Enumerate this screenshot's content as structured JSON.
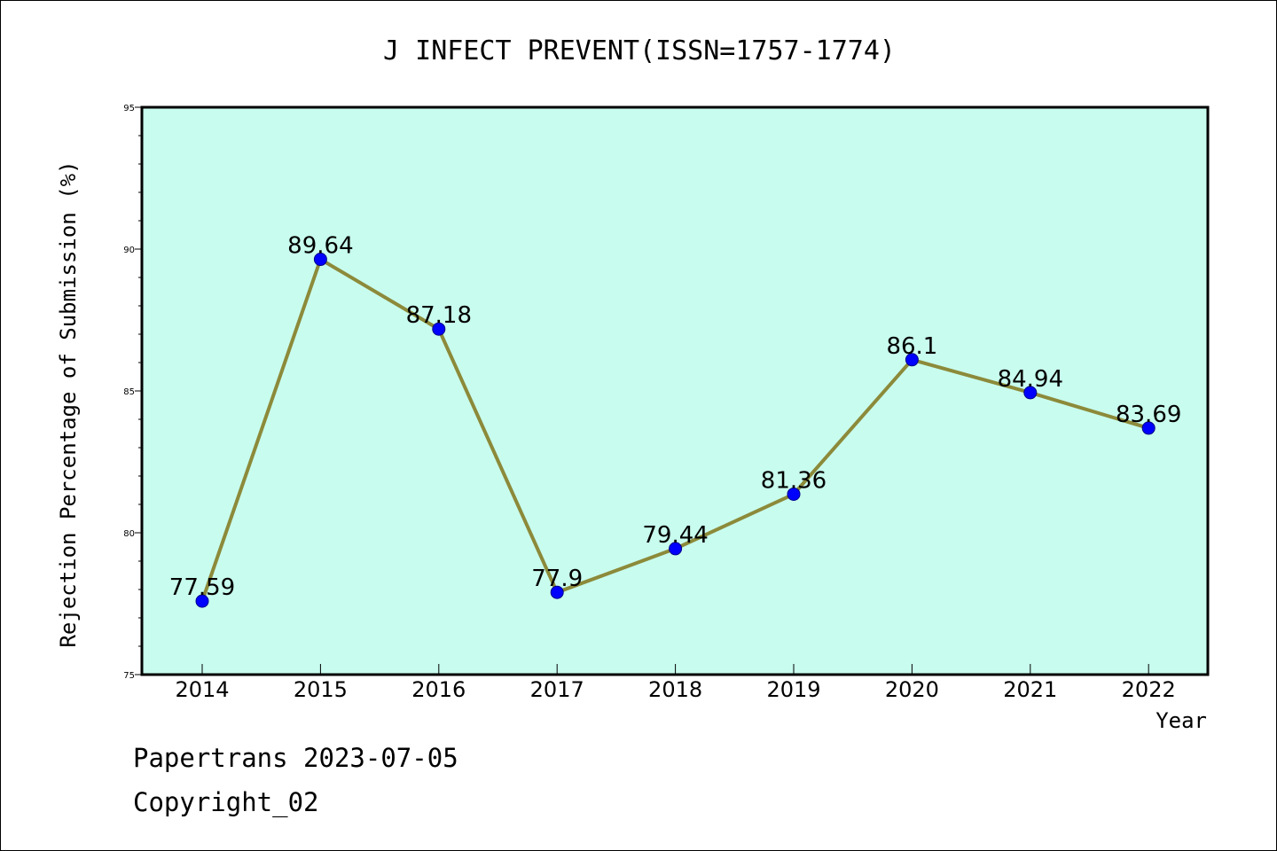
{
  "chart_data": {
    "type": "line",
    "title": "J INFECT PREVENT(ISSN=1757-1774)",
    "xlabel": "Year",
    "ylabel": "Rejection Percentage of Submission (%)",
    "categories": [
      "2014",
      "2015",
      "2016",
      "2017",
      "2018",
      "2019",
      "2020",
      "2021",
      "2022"
    ],
    "series": [
      {
        "values": [
          77.59,
          89.64,
          87.18,
          77.9,
          79.44,
          81.36,
          86.1,
          84.94,
          83.69
        ],
        "labels": [
          "77.59",
          "89.64",
          "87.18",
          "77.9",
          "79.44",
          "81.36",
          "86.1",
          "84.94",
          "83.69"
        ]
      }
    ],
    "ylim": [
      75,
      95
    ],
    "yticks": [
      "75",
      "80",
      "85",
      "90",
      "95"
    ],
    "grid": false,
    "colors": {
      "plot_background": "#c8fcee",
      "line": "#8c8a3a",
      "marker": "#0000ff"
    }
  },
  "footer": {
    "line1": "Papertrans 2023-07-05",
    "line2": "Copyright_02"
  }
}
